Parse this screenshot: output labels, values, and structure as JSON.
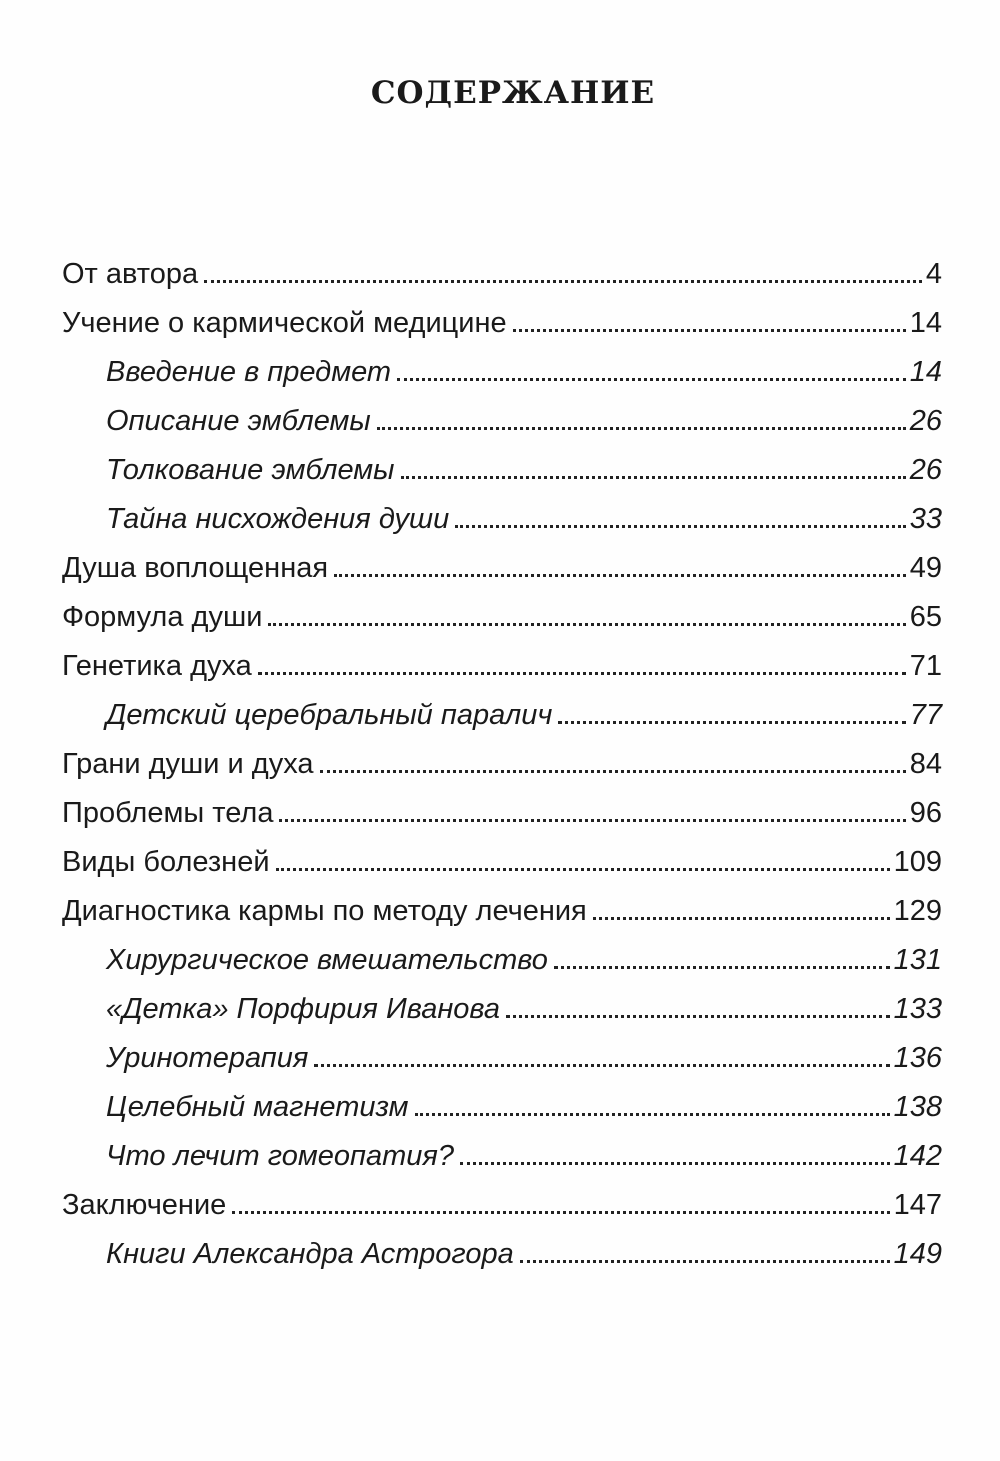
{
  "title": "СОДЕРЖАНИЕ",
  "entries": [
    {
      "label": "От автора",
      "page": "4",
      "level": 1
    },
    {
      "label": "Учение о  кармической медицине",
      "page": "14",
      "level": 1
    },
    {
      "label": "Введение в предмет",
      "page": "14",
      "level": 2
    },
    {
      "label": "Описание эмблемы",
      "page": "26",
      "level": 2
    },
    {
      "label": "Толкование эмблемы",
      "page": "26",
      "level": 2
    },
    {
      "label": "Тайна нисхождения души",
      "page": "33",
      "level": 2
    },
    {
      "label": "Душа воплощенная",
      "page": "49",
      "level": 1
    },
    {
      "label": "Формула души",
      "page": "65",
      "level": 1
    },
    {
      "label": "Генетика духа",
      "page": "71",
      "level": 1
    },
    {
      "label": "Детский церебральный паралич",
      "page": "77",
      "level": 2
    },
    {
      "label": "Грани души и  духа",
      "page": "84",
      "level": 1
    },
    {
      "label": "Проблемы тела",
      "page": "96",
      "level": 1
    },
    {
      "label": "Виды болезней",
      "page": "109",
      "level": 1
    },
    {
      "label": "Диагностика кармы по методу лечения",
      "page": "129",
      "level": 1
    },
    {
      "label": "Хирургическое вмешательство",
      "page": "131",
      "level": 2
    },
    {
      "label": "«Детка» Порфирия Иванова",
      "page": "133",
      "level": 2
    },
    {
      "label": "Уринотерапия",
      "page": "136",
      "level": 2
    },
    {
      "label": "Целебный магнетизм",
      "page": "138",
      "level": 2
    },
    {
      "label": "Что лечит гомеопатия?",
      "page": "142",
      "level": 2
    },
    {
      "label": "Заключение",
      "page": "147",
      "level": 1
    },
    {
      "label": "Книги Александра Астрогора",
      "page": "149",
      "level": 2
    }
  ]
}
